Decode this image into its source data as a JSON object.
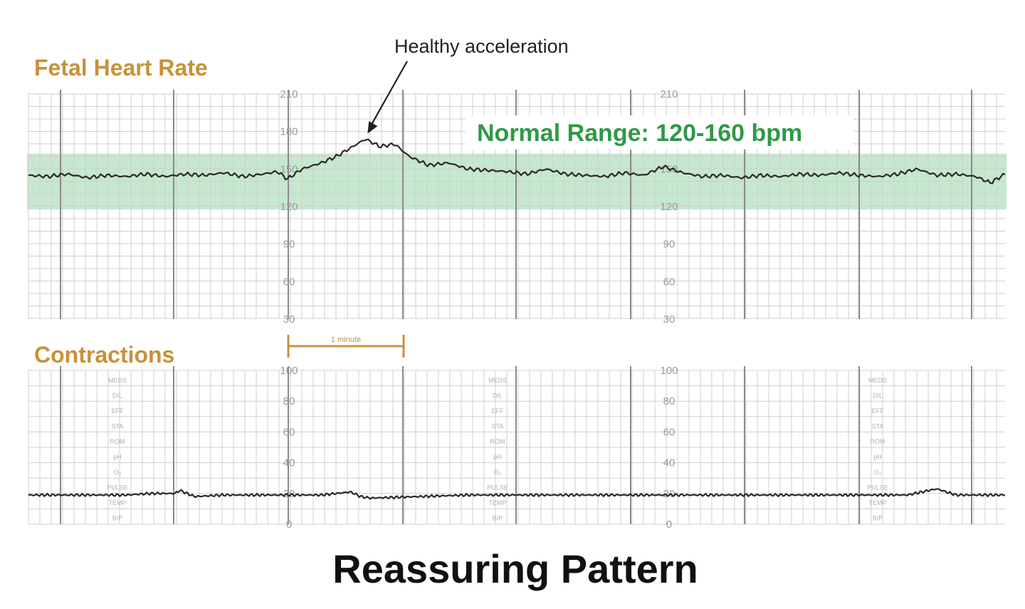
{
  "colors": {
    "title": "#c8913a",
    "band": "#c6e8cf",
    "normal_text": "#2e9a48",
    "trace": "#2a2a2a",
    "grid_major": "#8a8a8a",
    "grid_minor": "#cfcfcf"
  },
  "chart_data": [
    {
      "type": "line",
      "title": "Fetal Heart Rate",
      "ylim": [
        30,
        210
      ],
      "yticks": [
        "210",
        "180",
        "150",
        "120",
        "90",
        "60",
        "30"
      ],
      "band": {
        "range": [
          120,
          160
        ],
        "label": "Normal Range: 120-160 bpm"
      },
      "annotation": {
        "text": "Healthy acceleration",
        "x": 0.345,
        "y": 175
      },
      "x_domain": [
        0,
        1
      ],
      "series": [
        {
          "x": [
            0,
            0.02,
            0.04,
            0.06,
            0.08,
            0.1,
            0.12,
            0.14,
            0.16,
            0.18,
            0.2,
            0.22,
            0.24,
            0.255,
            0.265,
            0.28,
            0.3,
            0.315,
            0.33,
            0.345,
            0.36,
            0.375,
            0.39,
            0.41,
            0.43,
            0.45,
            0.47,
            0.49,
            0.51,
            0.53,
            0.55,
            0.57,
            0.59,
            0.61,
            0.63,
            0.65,
            0.67,
            0.69,
            0.71,
            0.73,
            0.75,
            0.77,
            0.79,
            0.81,
            0.83,
            0.85,
            0.87,
            0.89,
            0.91,
            0.93,
            0.95,
            0.97,
            0.985,
            1.0
          ],
          "y": [
            145,
            144,
            146,
            143,
            145,
            144,
            146,
            144,
            146,
            145,
            147,
            144,
            146,
            148,
            142,
            150,
            155,
            160,
            167,
            174,
            168,
            170,
            160,
            153,
            155,
            150,
            149,
            148,
            146,
            150,
            146,
            145,
            144,
            147,
            145,
            152,
            147,
            144,
            145,
            143,
            145,
            144,
            146,
            145,
            147,
            145,
            144,
            146,
            150,
            145,
            146,
            144,
            139,
            146
          ]
        }
      ]
    },
    {
      "type": "line",
      "title": "Contractions",
      "ylim": [
        0,
        100
      ],
      "yticks": [
        "100",
        "80",
        "60",
        "40",
        "20",
        "0"
      ],
      "scale_label": "1 minute",
      "x_domain": [
        0,
        1
      ],
      "series": [
        {
          "x": [
            0,
            0.05,
            0.1,
            0.125,
            0.15,
            0.155,
            0.17,
            0.2,
            0.25,
            0.3,
            0.33,
            0.34,
            0.35,
            0.4,
            0.45,
            0.5,
            0.55,
            0.6,
            0.65,
            0.7,
            0.75,
            0.8,
            0.85,
            0.9,
            0.93,
            0.935,
            0.95,
            1.0
          ],
          "y": [
            19,
            19,
            19,
            20,
            20,
            22,
            18,
            19,
            19,
            19,
            21,
            18,
            17,
            18,
            19,
            19,
            19,
            19,
            19,
            19,
            19,
            19,
            19,
            19,
            23,
            22,
            19,
            19
          ]
        }
      ]
    }
  ],
  "side_labels": [
    "MEDS",
    "DIL",
    "EFF",
    "STA",
    "ROM",
    "pH",
    "O₂",
    "PULSE",
    "TEMP",
    "B/P"
  ],
  "caption": "Reassuring Pattern"
}
